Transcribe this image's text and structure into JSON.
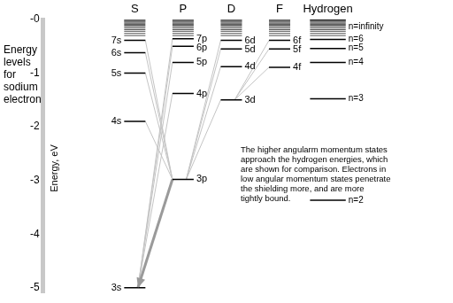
{
  "chart_data": {
    "type": "energy_levels",
    "title": "Energy levels for sodium electron",
    "ylabel": "Energy, eV",
    "ylim": [
      -5.1,
      0
    ],
    "yticks": [
      {
        "value": 0,
        "label": "-0"
      },
      -1,
      -2,
      -3,
      -4,
      -5
    ],
    "tick_labels": "y",
    "grid": false,
    "color": "#000000",
    "columns": [
      {
        "name": "S",
        "levels": [
          {
            "label": "3s",
            "value": -5.0
          },
          {
            "label": "4s",
            "value": -1.9
          },
          {
            "label": "5s",
            "value": -1.0
          },
          {
            "label": "6s",
            "value": -0.62
          },
          {
            "label": "7s",
            "value": -0.39
          }
        ],
        "unlabeled_levels": [
          -0.3,
          -0.26,
          -0.22,
          -0.19,
          -0.16,
          -0.13,
          -0.11,
          -0.09,
          -0.07,
          -0.05,
          -0.035,
          -0.02,
          -0.01
        ]
      },
      {
        "name": "P",
        "levels": [
          {
            "label": "3p",
            "value": -2.98
          },
          {
            "label": "4p",
            "value": -1.38
          },
          {
            "label": "5p",
            "value": -0.8
          },
          {
            "label": "6p",
            "value": -0.5
          },
          {
            "label": "7p",
            "value": -0.36
          }
        ],
        "unlabeled_levels": [
          -0.3,
          -0.26,
          -0.22,
          -0.19,
          -0.16,
          -0.13,
          -0.11,
          -0.09,
          -0.07,
          -0.05,
          -0.035,
          -0.02,
          -0.01
        ]
      },
      {
        "name": "D",
        "levels": [
          {
            "label": "3d",
            "value": -1.5
          },
          {
            "label": "4d",
            "value": -0.88
          },
          {
            "label": "5d",
            "value": -0.55
          },
          {
            "label": "6d",
            "value": -0.39
          }
        ],
        "unlabeled_levels": [
          -0.3,
          -0.26,
          -0.22,
          -0.19,
          -0.16,
          -0.13,
          -0.11,
          -0.09,
          -0.07,
          -0.05,
          -0.035,
          -0.02,
          -0.01
        ]
      },
      {
        "name": "F",
        "levels": [
          {
            "label": "4f",
            "value": -0.89
          },
          {
            "label": "5f",
            "value": -0.55
          },
          {
            "label": "6f",
            "value": -0.39
          }
        ],
        "unlabeled_levels": [
          -0.3,
          -0.26,
          -0.22,
          -0.19,
          -0.16,
          -0.13,
          -0.11,
          -0.09,
          -0.07,
          -0.05,
          -0.035,
          -0.02,
          -0.01
        ]
      },
      {
        "name": "Hydrogen",
        "levels": [
          {
            "label": "n=2",
            "value": -3.37
          },
          {
            "label": "n=3",
            "value": -1.48
          },
          {
            "label": "n=4",
            "value": -0.8
          },
          {
            "label": "n=5",
            "value": -0.54
          },
          {
            "label": "n=6",
            "value": -0.37
          },
          {
            "label": "n=infinity",
            "value": 0
          }
        ],
        "unlabeled_levels": [
          -0.3,
          -0.26,
          -0.22,
          -0.19,
          -0.16,
          -0.13,
          -0.11,
          -0.09,
          -0.07,
          -0.05,
          -0.035,
          -0.02,
          -0.01
        ]
      }
    ],
    "transitions": [
      {
        "from": "3p",
        "to": "3s",
        "line_style": "arrow"
      },
      {
        "from": "4p",
        "to": "3s"
      },
      {
        "from": "5p",
        "to": "3s"
      },
      {
        "from": "6p",
        "to": "3s"
      },
      {
        "from": "7p",
        "to": "3s"
      },
      {
        "from": "4s",
        "to": "3p"
      },
      {
        "from": "5s",
        "to": "3p"
      },
      {
        "from": "6s",
        "to": "3p"
      },
      {
        "from": "7s",
        "to": "3p"
      },
      {
        "from": "3d",
        "to": "3p"
      },
      {
        "from": "4d",
        "to": "3p"
      },
      {
        "from": "5d",
        "to": "3p"
      },
      {
        "from": "6d",
        "to": "3p"
      },
      {
        "from": "4f",
        "to": "3d"
      },
      {
        "from": "5f",
        "to": "3d"
      },
      {
        "from": "6f",
        "to": "3d"
      }
    ],
    "annotation": [
      "The higher angularm momentum states",
      "approach the hydrogen energies, which",
      "are shown for comparison. Electrons in",
      "low angular momentum states penetrate",
      "the shielding more, and are more",
      "tightly bound."
    ]
  }
}
